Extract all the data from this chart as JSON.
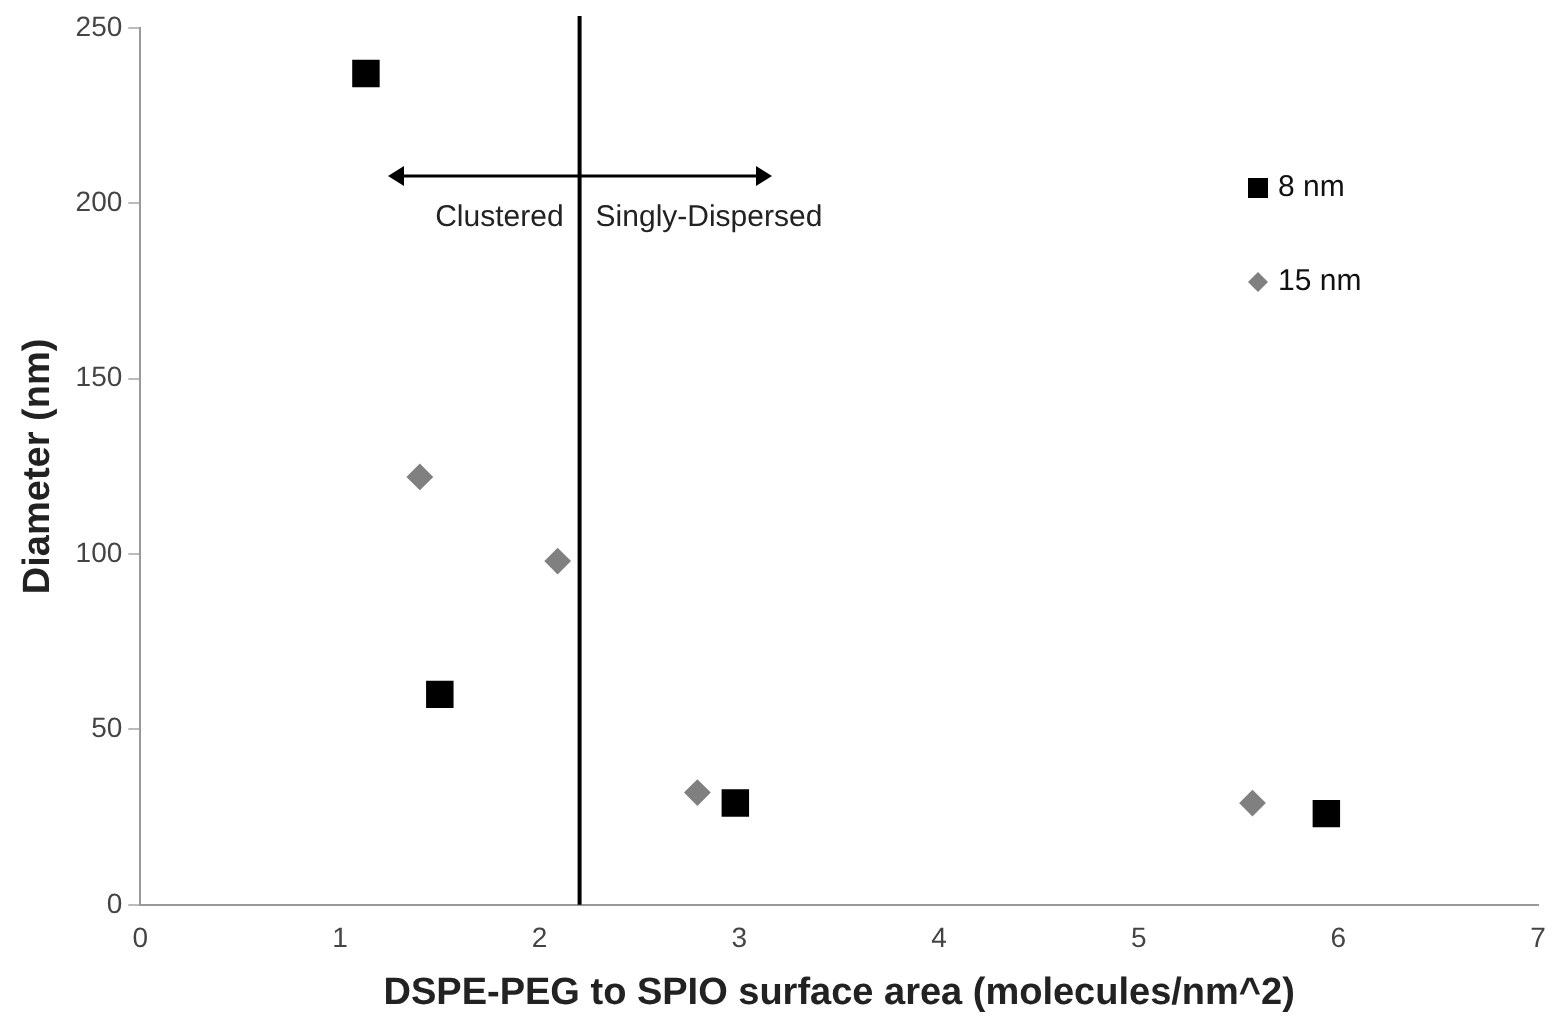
{
  "chart_data": {
    "type": "scatter",
    "xlabel": "DSPE-PEG to SPIO surface area (molecules/nm^2)",
    "ylabel": "Diameter (nm)",
    "series": [
      {
        "name": "8 nm",
        "color": "#000000",
        "marker": "square",
        "x": [
          1.13,
          1.5,
          2.98,
          5.94
        ],
        "values": [
          237,
          60,
          29,
          26
        ]
      },
      {
        "name": "15 nm",
        "color": "#808080",
        "marker": "diamond",
        "x": [
          1.4,
          2.09,
          2.79,
          5.57
        ],
        "values": [
          122,
          98,
          32,
          29
        ]
      }
    ],
    "xlim": [
      0,
      7
    ],
    "xticks": [
      0,
      1,
      2,
      3,
      4,
      5,
      6,
      7
    ],
    "ylim": [
      0,
      250
    ],
    "yticks": [
      0,
      50,
      100,
      150,
      200,
      250
    ],
    "grid": false,
    "legend": "top right",
    "ref_lines": [
      {
        "axis": "x",
        "value": 2.2,
        "color": "#000000"
      }
    ],
    "annotations": [
      "Clustered",
      "Singly-Dispersed"
    ]
  }
}
